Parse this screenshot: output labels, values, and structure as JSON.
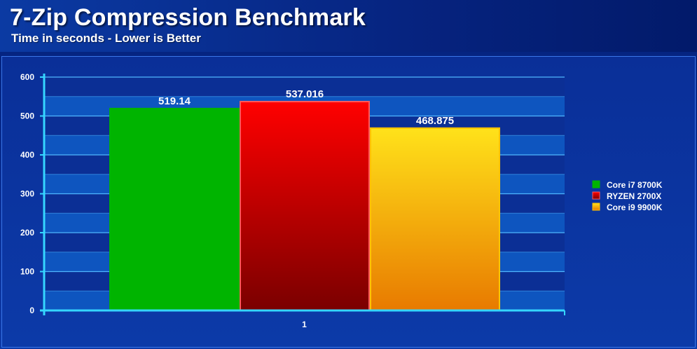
{
  "header": {
    "title": "7-Zip Compression Benchmark",
    "subtitle": "Time in seconds - Lower is Better"
  },
  "colors": {
    "background": "#0a2f98",
    "axis": "#35d6ff",
    "gridline": "#4fb6ff",
    "label": "#ffffff"
  },
  "chart_data": {
    "type": "bar",
    "title": "7-Zip Compression Benchmark",
    "subtitle": "Time in seconds - Lower is Better",
    "categories": [
      "1"
    ],
    "series": [
      {
        "name": "Core i7 8700K",
        "values": [
          519.14
        ],
        "label": "519.14",
        "color": "#00b400",
        "colorEnd": "#00b400"
      },
      {
        "name": "RYZEN 2700X",
        "values": [
          537.016
        ],
        "label": "537.016",
        "color": "#ff0000",
        "colorEnd": "#7a0000"
      },
      {
        "name": "Core i9 9900K",
        "values": [
          468.875
        ],
        "label": "468.875",
        "color": "#ffe21a",
        "colorEnd": "#e87a00"
      }
    ],
    "ylim": [
      0,
      600
    ],
    "yticks": [
      "0",
      "100",
      "200",
      "300",
      "400",
      "500",
      "600"
    ],
    "xlabel": "",
    "ylabel": "",
    "grid": true,
    "legend": "right"
  }
}
